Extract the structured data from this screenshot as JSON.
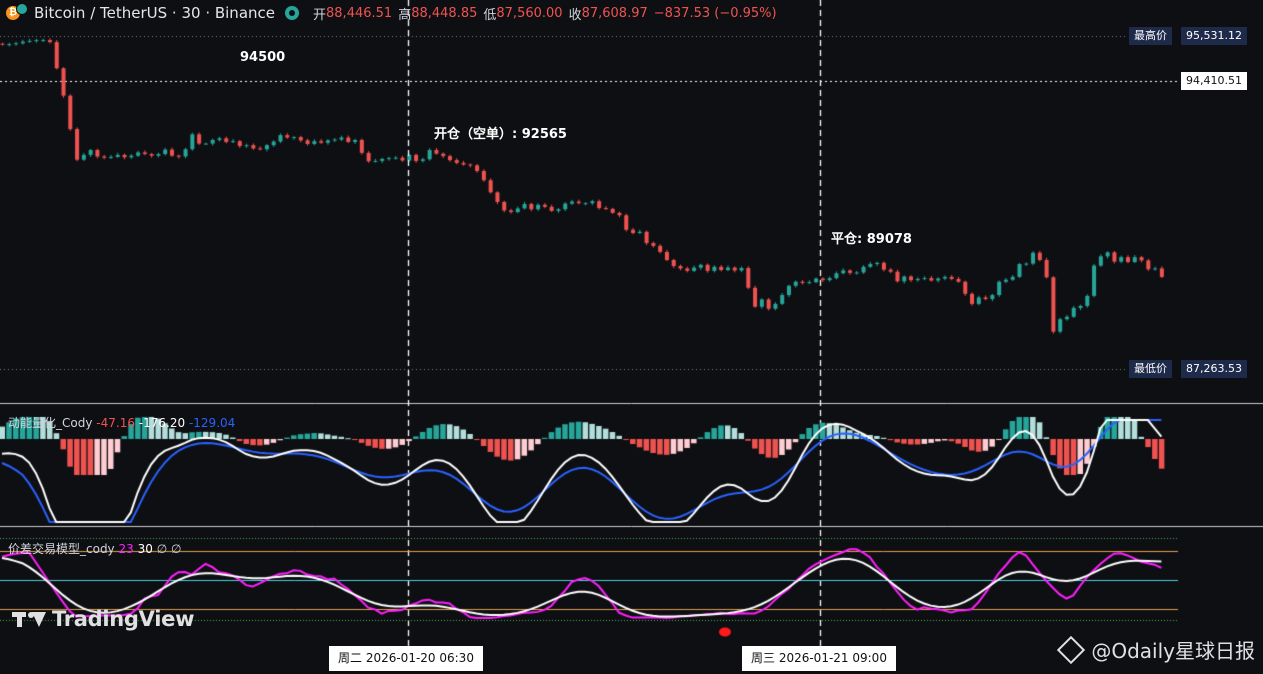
{
  "header": {
    "symbol": "Bitcoin / TetherUS · 30 · Binance",
    "open_label": "开",
    "open": "88,446.51",
    "high_label": "高",
    "high": "88,448.85",
    "low_label": "低",
    "low": "87,560.00",
    "close_label": "收",
    "close": "87,608.97",
    "change": "−837.53 (−0.95%)"
  },
  "price_badges": {
    "highest_label": "最高价",
    "highest": "95,531.12",
    "current": "94,410.51",
    "lowest_label": "最低价",
    "lowest": "87,263.53"
  },
  "annotations": {
    "level": "94500",
    "open_short": "开仓（空单）: 92565",
    "close_position": "平仓: 89078"
  },
  "indicator1": {
    "name": "动能量化_Cody",
    "v1": "-47.16",
    "v2": "-176.20",
    "v3": "-129.04"
  },
  "indicator2": {
    "name": "价差交易模型_cody",
    "p1": "23",
    "p2": "30",
    "p3": "∅",
    "p4": "∅"
  },
  "time_axis": {
    "label_left": "周二 2026-01-20   06:30",
    "label_right": "周三 2026-01-21   09:00"
  },
  "branding": {
    "logo": "TradingView",
    "watermark": "@Odaily星球日报"
  },
  "colors": {
    "up": "#26a69a",
    "down": "#ef5350",
    "bg": "#0e0f13",
    "hist_up": "#26a69a",
    "hist_up_light": "#b2dfdb",
    "hist_down": "#ef5350",
    "hist_down_light": "#ffcdd2",
    "line_white": "#ffffff",
    "line_blue": "#2962ff",
    "line_magenta": "#ff1fff"
  },
  "chart_data": {
    "type": "candlestick",
    "price_range": [
      87263.53,
      95531.12
    ],
    "reference_lines": {
      "highest": 95531.12,
      "current": 94410.51,
      "lowest": 87263.53
    },
    "events": [
      {
        "time": "2026-01-20 06:30",
        "label": "开仓（空单）",
        "price": 92565
      },
      {
        "time": "2026-01-21 09:00",
        "label": "平仓",
        "price": 89078
      }
    ],
    "closes": [
      95320,
      95330,
      95350,
      95390,
      95410,
      95430,
      95430,
      95380,
      94730,
      94050,
      93220,
      92460,
      92580,
      92700,
      92540,
      92510,
      92530,
      92580,
      92520,
      92560,
      92640,
      92600,
      92560,
      92600,
      92710,
      92560,
      92540,
      92720,
      93090,
      92860,
      92860,
      92950,
      92990,
      92900,
      92920,
      92800,
      92820,
      92740,
      92720,
      92820,
      92910,
      93070,
      93010,
      93020,
      92940,
      92850,
      92920,
      92880,
      92940,
      92960,
      93010,
      92900,
      92950,
      92630,
      92420,
      92430,
      92480,
      92500,
      92510,
      92440,
      92580,
      92430,
      92470,
      92700,
      92610,
      92550,
      92450,
      92380,
      92340,
      92320,
      92180,
      91950,
      91650,
      91410,
      91200,
      91160,
      91250,
      91360,
      91230,
      91340,
      91290,
      91190,
      91230,
      91370,
      91420,
      91380,
      91380,
      91430,
      91260,
      91240,
      91140,
      91080,
      90720,
      90640,
      90670,
      90390,
      90320,
      90170,
      89970,
      89820,
      89760,
      89700,
      89780,
      89850,
      89700,
      89800,
      89720,
      89780,
      89710,
      89770,
      89280,
      88810,
      88990,
      88760,
      88880,
      89100,
      89330,
      89430,
      89400,
      89420,
      89510,
      89470,
      89520,
      89640,
      89710,
      89650,
      89660,
      89800,
      89870,
      89900,
      89730,
      89680,
      89440,
      89560,
      89470,
      89500,
      89520,
      89460,
      89510,
      89550,
      89500,
      89430,
      89130,
      88880,
      89040,
      89000,
      89100,
      89430,
      89480,
      89550,
      89870,
      89880,
      90150,
      89970,
      89540,
      88190,
      88500,
      88560,
      88780,
      88830,
      89080,
      89830,
      90060,
      90160,
      89930,
      90040,
      89920,
      90040,
      89960,
      89740,
      89760,
      89550
    ]
  }
}
